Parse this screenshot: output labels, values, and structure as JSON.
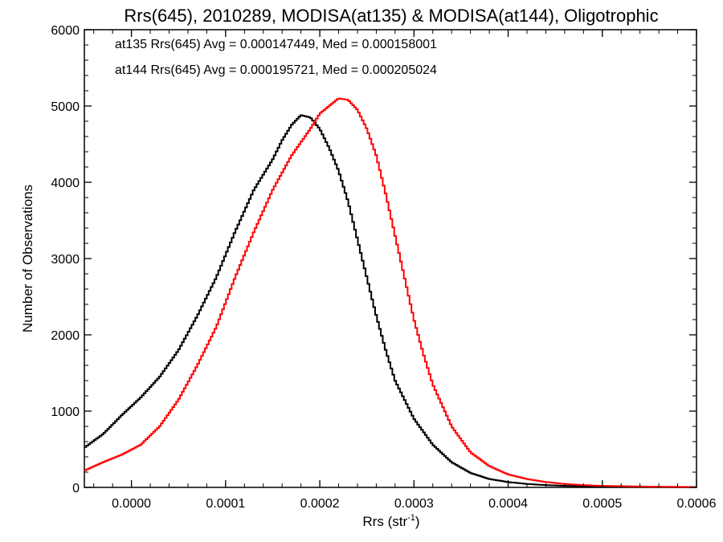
{
  "chart_data": {
    "type": "histogram",
    "title": "Rrs(645), 2010289, MODISA(at135) & MODISA(at144), Oligotrophic",
    "xlabel": "Rrs (str",
    "xlabel_superscript": "-1",
    "xlabel_suffix": ")",
    "ylabel": "Number of Observations",
    "xlim": [
      -5e-05,
      0.0006
    ],
    "ylim": [
      0,
      6000
    ],
    "x_ticks": [
      0.0,
      0.0001,
      0.0002,
      0.0003,
      0.0004,
      0.0005,
      0.0006
    ],
    "x_tick_labels": [
      "0.0000",
      "0.0001",
      "0.0002",
      "0.0003",
      "0.0004",
      "0.0005",
      "0.0006"
    ],
    "y_ticks": [
      0,
      1000,
      2000,
      3000,
      4000,
      5000,
      6000
    ],
    "y_tick_labels": [
      "0",
      "1000",
      "2000",
      "3000",
      "4000",
      "5000",
      "6000"
    ],
    "grid": false,
    "annotations": [
      {
        "text": "at135 Rrs(645) Avg = 0.000147449, Med = 0.000158001",
        "color": "#000000"
      },
      {
        "text": "at144 Rrs(645) Avg = 0.000195721, Med = 0.000205024",
        "color": "#ff0000"
      }
    ],
    "series": [
      {
        "color": "#000000",
        "x": [
          -5e-05,
          -3e-05,
          -1e-05,
          1e-05,
          3e-05,
          5e-05,
          7e-05,
          9e-05,
          0.00011,
          0.00013,
          0.00015,
          0.00016,
          0.00017,
          0.00018,
          0.00019,
          0.0002,
          0.00021,
          0.00022,
          0.00023,
          0.00024,
          0.00025,
          0.00026,
          0.00027,
          0.00028,
          0.0003,
          0.00032,
          0.00034,
          0.00036,
          0.00038,
          0.0004,
          0.00042,
          0.00044,
          0.00046,
          0.0005,
          0.00055,
          0.0006
        ],
        "y": [
          520,
          700,
          950,
          1180,
          1450,
          1800,
          2250,
          2750,
          3350,
          3900,
          4300,
          4550,
          4750,
          4880,
          4850,
          4700,
          4450,
          4150,
          3750,
          3250,
          2750,
          2250,
          1800,
          1400,
          900,
          560,
          330,
          190,
          110,
          70,
          45,
          30,
          20,
          10,
          5,
          2
        ]
      },
      {
        "color": "#ff0000",
        "x": [
          -5e-05,
          -3e-05,
          -1e-05,
          1e-05,
          3e-05,
          5e-05,
          7e-05,
          9e-05,
          0.00011,
          0.00013,
          0.00015,
          0.00017,
          0.00019,
          0.0002,
          0.00021,
          0.00022,
          0.00023,
          0.00024,
          0.00025,
          0.00026,
          0.00027,
          0.00028,
          0.00029,
          0.0003,
          0.00031,
          0.00032,
          0.00034,
          0.00036,
          0.00038,
          0.0004,
          0.00042,
          0.00044,
          0.00046,
          0.00048,
          0.0005,
          0.00055,
          0.0006
        ],
        "y": [
          220,
          330,
          430,
          560,
          800,
          1150,
          1600,
          2100,
          2750,
          3350,
          3900,
          4350,
          4700,
          4900,
          5000,
          5100,
          5080,
          4950,
          4700,
          4350,
          3850,
          3300,
          2750,
          2200,
          1750,
          1350,
          800,
          460,
          280,
          170,
          110,
          70,
          45,
          30,
          20,
          10,
          5
        ]
      }
    ]
  }
}
